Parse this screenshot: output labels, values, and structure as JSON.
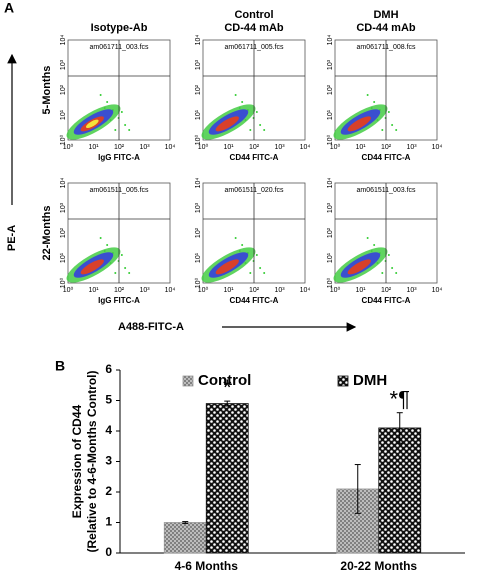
{
  "panel_a": {
    "label": "A",
    "columns": [
      [
        "Isotype-Ab"
      ],
      [
        "Control",
        "CD-44 mAb"
      ],
      [
        "DMH",
        "CD-44 mAb"
      ]
    ],
    "rows": [
      "5-Months",
      "22-Months"
    ],
    "y_axis": "PE-A",
    "x_axis": "A488-FITC-A",
    "ticks": [
      "10⁰",
      "10¹",
      "10²",
      "10³",
      "10⁴"
    ],
    "plots": [
      [
        {
          "file": "am061711_003.fcs",
          "x_label": "IgG FITC-A"
        },
        {
          "file": "am061711_005.fcs",
          "x_label": "CD44 FITC-A"
        },
        {
          "file": "am061711_008.fcs",
          "x_label": "CD44 FITC-A"
        }
      ],
      [
        {
          "file": "am061511_005.fcs",
          "x_label": "IgG FITC-A"
        },
        {
          "file": "am061511_020.fcs",
          "x_label": "CD44 FITC-A"
        },
        {
          "file": "am061511_003.fcs",
          "x_label": "CD44 FITC-A"
        }
      ]
    ]
  },
  "chart_data": {
    "type": "bar",
    "panel_label": "B",
    "y_label": [
      "Expression of CD44",
      "(Relative to 4-6-Months Control)"
    ],
    "categories": [
      "4-6 Months",
      "20-22 Months"
    ],
    "series": [
      {
        "name": "Control",
        "color": "#9a9a9a",
        "values": [
          1.0,
          2.1
        ],
        "errors": [
          0.03,
          0.8
        ]
      },
      {
        "name": "DMH",
        "color": "#111111",
        "values": [
          4.9,
          4.1
        ],
        "errors": [
          0.08,
          0.5
        ]
      }
    ],
    "annotations": [
      "*",
      "*¶"
    ],
    "ylim": [
      0,
      6
    ],
    "yticks": [
      0,
      1,
      2,
      3,
      4,
      5,
      6
    ],
    "legend": "top",
    "grid": false
  }
}
